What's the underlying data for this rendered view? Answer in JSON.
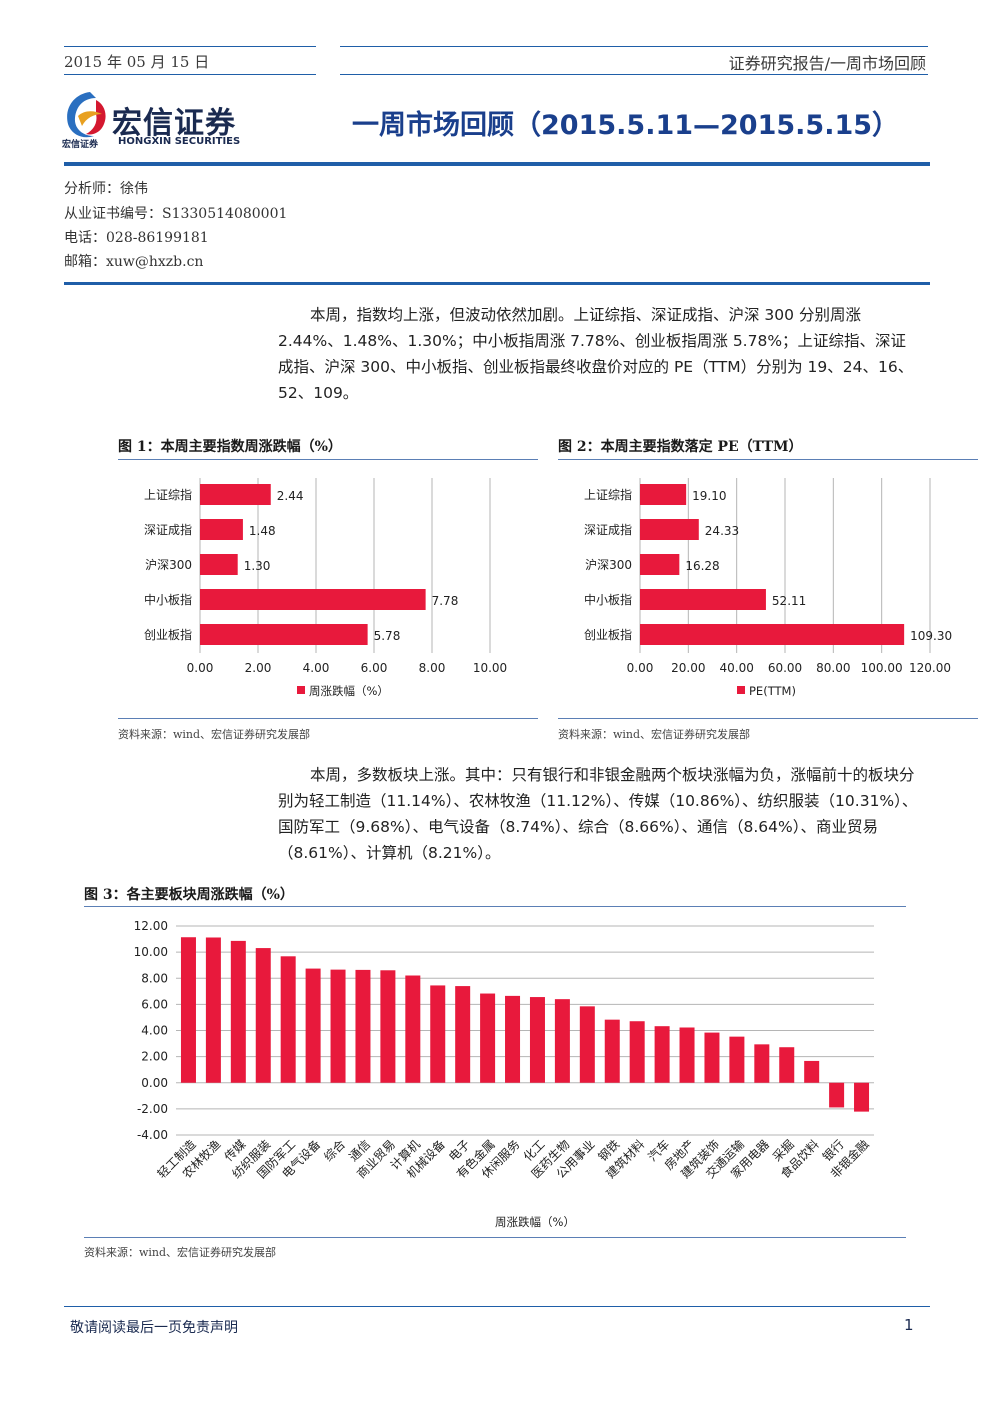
{
  "header": {
    "date": "2015 年 05 月 15 日",
    "category": "证券研究报告/一周市场回顾"
  },
  "logo": {
    "name": "宏信证券",
    "small": "宏信证券",
    "english": "HONGXIN SECURITIES"
  },
  "title": "一周市场回顾（2015.5.11—2015.5.15）",
  "analyst": {
    "name": "分析师：徐伟",
    "cert": "从业证书编号：S1330514080001",
    "phone": "电话：028-86199181",
    "email": "邮箱：xuw@hxzb.cn"
  },
  "paragraph1": "本周，指数均上涨，但波动依然加剧。上证综指、深证成指、沪深 300 分别周涨 2.44%、1.48%、1.30%；中小板指周涨 7.78%、创业板指周涨 5.78%；上证综指、深证成指、沪深 300、中小板指、创业板指最终收盘价对应的 PE（TTM）分别为 19、24、16、52、109。",
  "paragraph2": "本周，多数板块上涨。其中：只有银行和非银金融两个板块涨幅为负，涨幅前十的板块分别为轻工制造（11.14%）、农林牧渔（11.12%）、传媒（10.86%）、纺织服装（10.31%）、国防军工（9.68%）、电气设备（8.74%）、综合（8.66%）、通信（8.64%）、商业贸易（8.61%）、计算机（8.21%）。",
  "figures": {
    "fig1_title": "图 1：本周主要指数周涨跌幅（%）",
    "fig2_title": "图 2：本周主要指数落定 PE（TTM）",
    "fig3_title": "图 3：各主要板块周涨跌幅（%）",
    "source1": "资料来源：wind、宏信证券研究发展部",
    "source2": "资料来源：wind、宏信证券研究发展部",
    "source3": "资料来源：wind、宏信证券研究发展部"
  },
  "chart_data": [
    {
      "type": "bar",
      "orientation": "horizontal",
      "categories": [
        "上证综指",
        "深证成指",
        "沪深300",
        "中小板指",
        "创业板指"
      ],
      "series": [
        {
          "name": "周涨跌幅（%）",
          "values": [
            2.44,
            1.48,
            1.3,
            7.78,
            5.78
          ]
        }
      ],
      "value_labels": [
        "2.44",
        "1.48",
        "1.30",
        "7.78",
        "5.78"
      ],
      "xlim": [
        0,
        10
      ],
      "xticks": [
        "0.00",
        "2.00",
        "4.00",
        "6.00",
        "8.00",
        "10.00"
      ],
      "color": "#e8193c",
      "grid": true,
      "legend": "bottom"
    },
    {
      "type": "bar",
      "orientation": "horizontal",
      "categories": [
        "上证综指",
        "深证成指",
        "沪深300",
        "中小板指",
        "创业板指"
      ],
      "series": [
        {
          "name": "PE(TTM)",
          "values": [
            19.1,
            24.33,
            16.28,
            52.11,
            109.3
          ]
        }
      ],
      "value_labels": [
        "19.10",
        "24.33",
        "16.28",
        "52.11",
        "109.30"
      ],
      "xlim": [
        0,
        120
      ],
      "xticks": [
        "0.00",
        "20.00",
        "40.00",
        "60.00",
        "80.00",
        "100.00",
        "120.00"
      ],
      "color": "#e8193c",
      "grid": true,
      "legend": "bottom"
    },
    {
      "type": "bar",
      "categories": [
        "轻工制造",
        "农林牧渔",
        "传媒",
        "纺织服装",
        "国防军工",
        "电气设备",
        "综合",
        "通信",
        "商业贸易",
        "计算机",
        "机械设备",
        "电子",
        "有色金属",
        "休闲服务",
        "化工",
        "医药生物",
        "公用事业",
        "钢铁",
        "建筑材料",
        "汽车",
        "房地产",
        "建筑装饰",
        "交通运输",
        "家用电器",
        "采掘",
        "食品饮料",
        "银行",
        "非银金融"
      ],
      "series": [
        {
          "name": "周涨跌幅（%）",
          "values": [
            11.14,
            11.12,
            10.86,
            10.31,
            9.68,
            8.74,
            8.66,
            8.64,
            8.61,
            8.21,
            7.45,
            7.4,
            6.83,
            6.65,
            6.56,
            6.4,
            5.85,
            4.83,
            4.71,
            4.33,
            4.23,
            3.84,
            3.53,
            2.94,
            2.72,
            1.67,
            -1.89,
            -2.21
          ]
        }
      ],
      "ylim": [
        -4,
        12
      ],
      "yticks": [
        "12.00",
        "10.00",
        "8.00",
        "6.00",
        "4.00",
        "2.00",
        "0.00",
        "-2.00",
        "-4.00"
      ],
      "xlabel": "周涨跌幅（%）",
      "color": "#e8193c",
      "grid": true
    }
  ],
  "footer": {
    "disclaimer": "敬请阅读最后一页免责声明",
    "page": "1"
  }
}
